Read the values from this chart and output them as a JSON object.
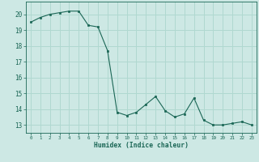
{
  "x": [
    0,
    1,
    2,
    3,
    4,
    5,
    6,
    7,
    8,
    9,
    10,
    11,
    12,
    13,
    14,
    15,
    16,
    17,
    18,
    19,
    20,
    21,
    22,
    23
  ],
  "y": [
    19.5,
    19.8,
    20.0,
    20.1,
    20.2,
    20.2,
    19.3,
    19.2,
    17.7,
    13.8,
    13.6,
    13.8,
    14.3,
    14.8,
    13.9,
    13.5,
    13.7,
    14.7,
    13.3,
    13.0,
    13.0,
    13.1,
    13.2,
    13.0
  ],
  "xlabel": "Humidex (Indice chaleur)",
  "ylim": [
    12.5,
    20.8
  ],
  "xlim": [
    -0.5,
    23.5
  ],
  "bg_color": "#cde8e4",
  "grid_color": "#b0d8d0",
  "line_color": "#1a6655",
  "marker_color": "#1a6655",
  "tick_color": "#1a6655",
  "label_color": "#1a6655",
  "yticks": [
    13,
    14,
    15,
    16,
    17,
    18,
    19,
    20
  ],
  "xticks": [
    0,
    1,
    2,
    3,
    4,
    5,
    6,
    7,
    8,
    9,
    10,
    11,
    12,
    13,
    14,
    15,
    16,
    17,
    18,
    19,
    20,
    21,
    22,
    23
  ]
}
